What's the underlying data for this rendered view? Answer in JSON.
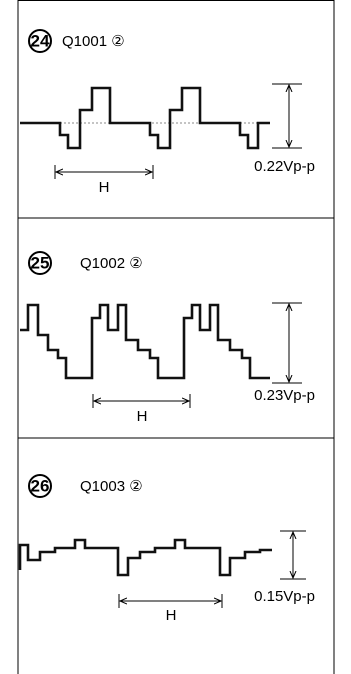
{
  "panels": [
    {
      "number": "24",
      "label": "Q1001 ②",
      "amplitude": "0.22Vp-p",
      "period": "H"
    },
    {
      "number": "25",
      "label": "Q1002 ②",
      "amplitude": "0.23Vp-p",
      "period": "H"
    },
    {
      "number": "26",
      "label": "Q1003 ②",
      "amplitude": "0.15Vp-p",
      "period": "H"
    }
  ]
}
